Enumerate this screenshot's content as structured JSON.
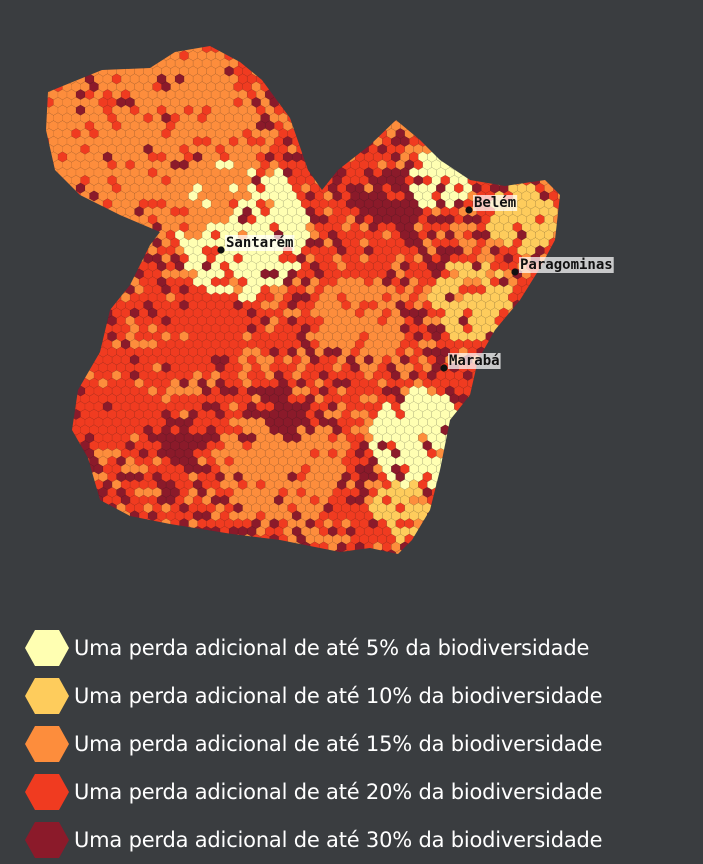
{
  "map": {
    "cities": [
      {
        "name": "Santarém",
        "key": "santarem"
      },
      {
        "name": "Belém",
        "key": "belem"
      },
      {
        "name": "Paragominas",
        "key": "paragominas"
      },
      {
        "name": "Marabá",
        "key": "maraba"
      }
    ]
  },
  "legend": {
    "items": [
      {
        "label": "Uma perda adicional de até 5% da biodiversidade",
        "color": "#ffffb2"
      },
      {
        "label": "Uma perda adicional de até 10% da biodiversidade",
        "color": "#fecc5c"
      },
      {
        "label": "Uma perda adicional de até 15% da biodiversidade",
        "color": "#fd8d3c"
      },
      {
        "label": " Uma perda adicional de até 20% da biodiversidade",
        "color": "#f03b20"
      },
      {
        "label": "Uma perda adicional de até 30% da biodiversidade",
        "color": "#8b1a2a"
      }
    ]
  }
}
